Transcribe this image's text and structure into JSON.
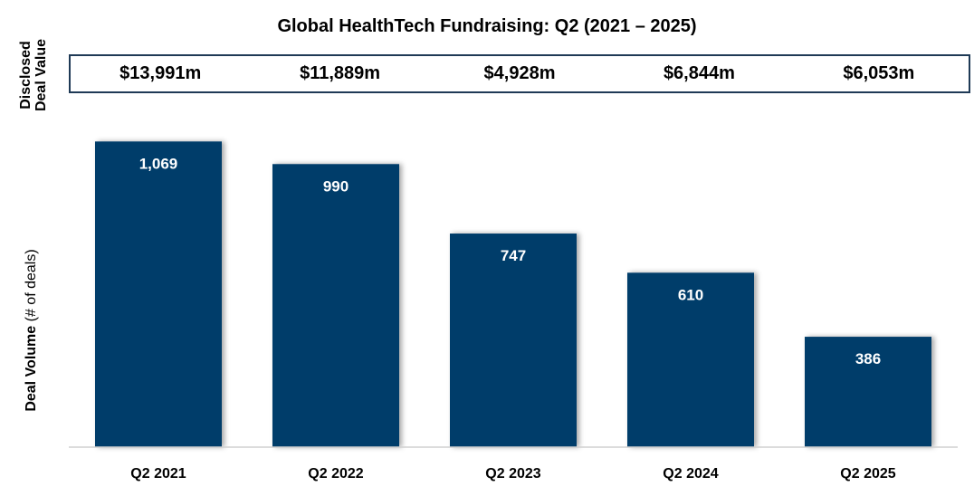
{
  "title": "Global HealthTech Fundraising:  Q2 (2021 – 2025)",
  "value_axis_label_line1": "Disclosed",
  "value_axis_label_line2": "Deal Value",
  "volume_axis_label_main": "Deal Volume",
  "volume_axis_label_unit": " (# of deals)",
  "deal_values": [
    "$13,991m",
    "$11,889m",
    "$4,928m",
    "$6,844m",
    "$6,053m"
  ],
  "colors": {
    "bar": "#003d6b",
    "box_border": "#1f3a56"
  },
  "chart_data": {
    "type": "bar",
    "title": "Global HealthTech Fundraising:  Q2 (2021 – 2025)",
    "categories": [
      "Q2 2021",
      "Q2 2022",
      "Q2 2023",
      "Q2 2024",
      "Q2 2025"
    ],
    "values": [
      1069,
      990,
      747,
      610,
      386
    ],
    "value_labels": [
      "1,069",
      "990",
      "747",
      "610",
      "386"
    ],
    "ylabel": "Deal Volume (# of deals)",
    "xlabel": "",
    "ylim": [
      0,
      1070
    ],
    "grid": false,
    "legend": "none"
  }
}
